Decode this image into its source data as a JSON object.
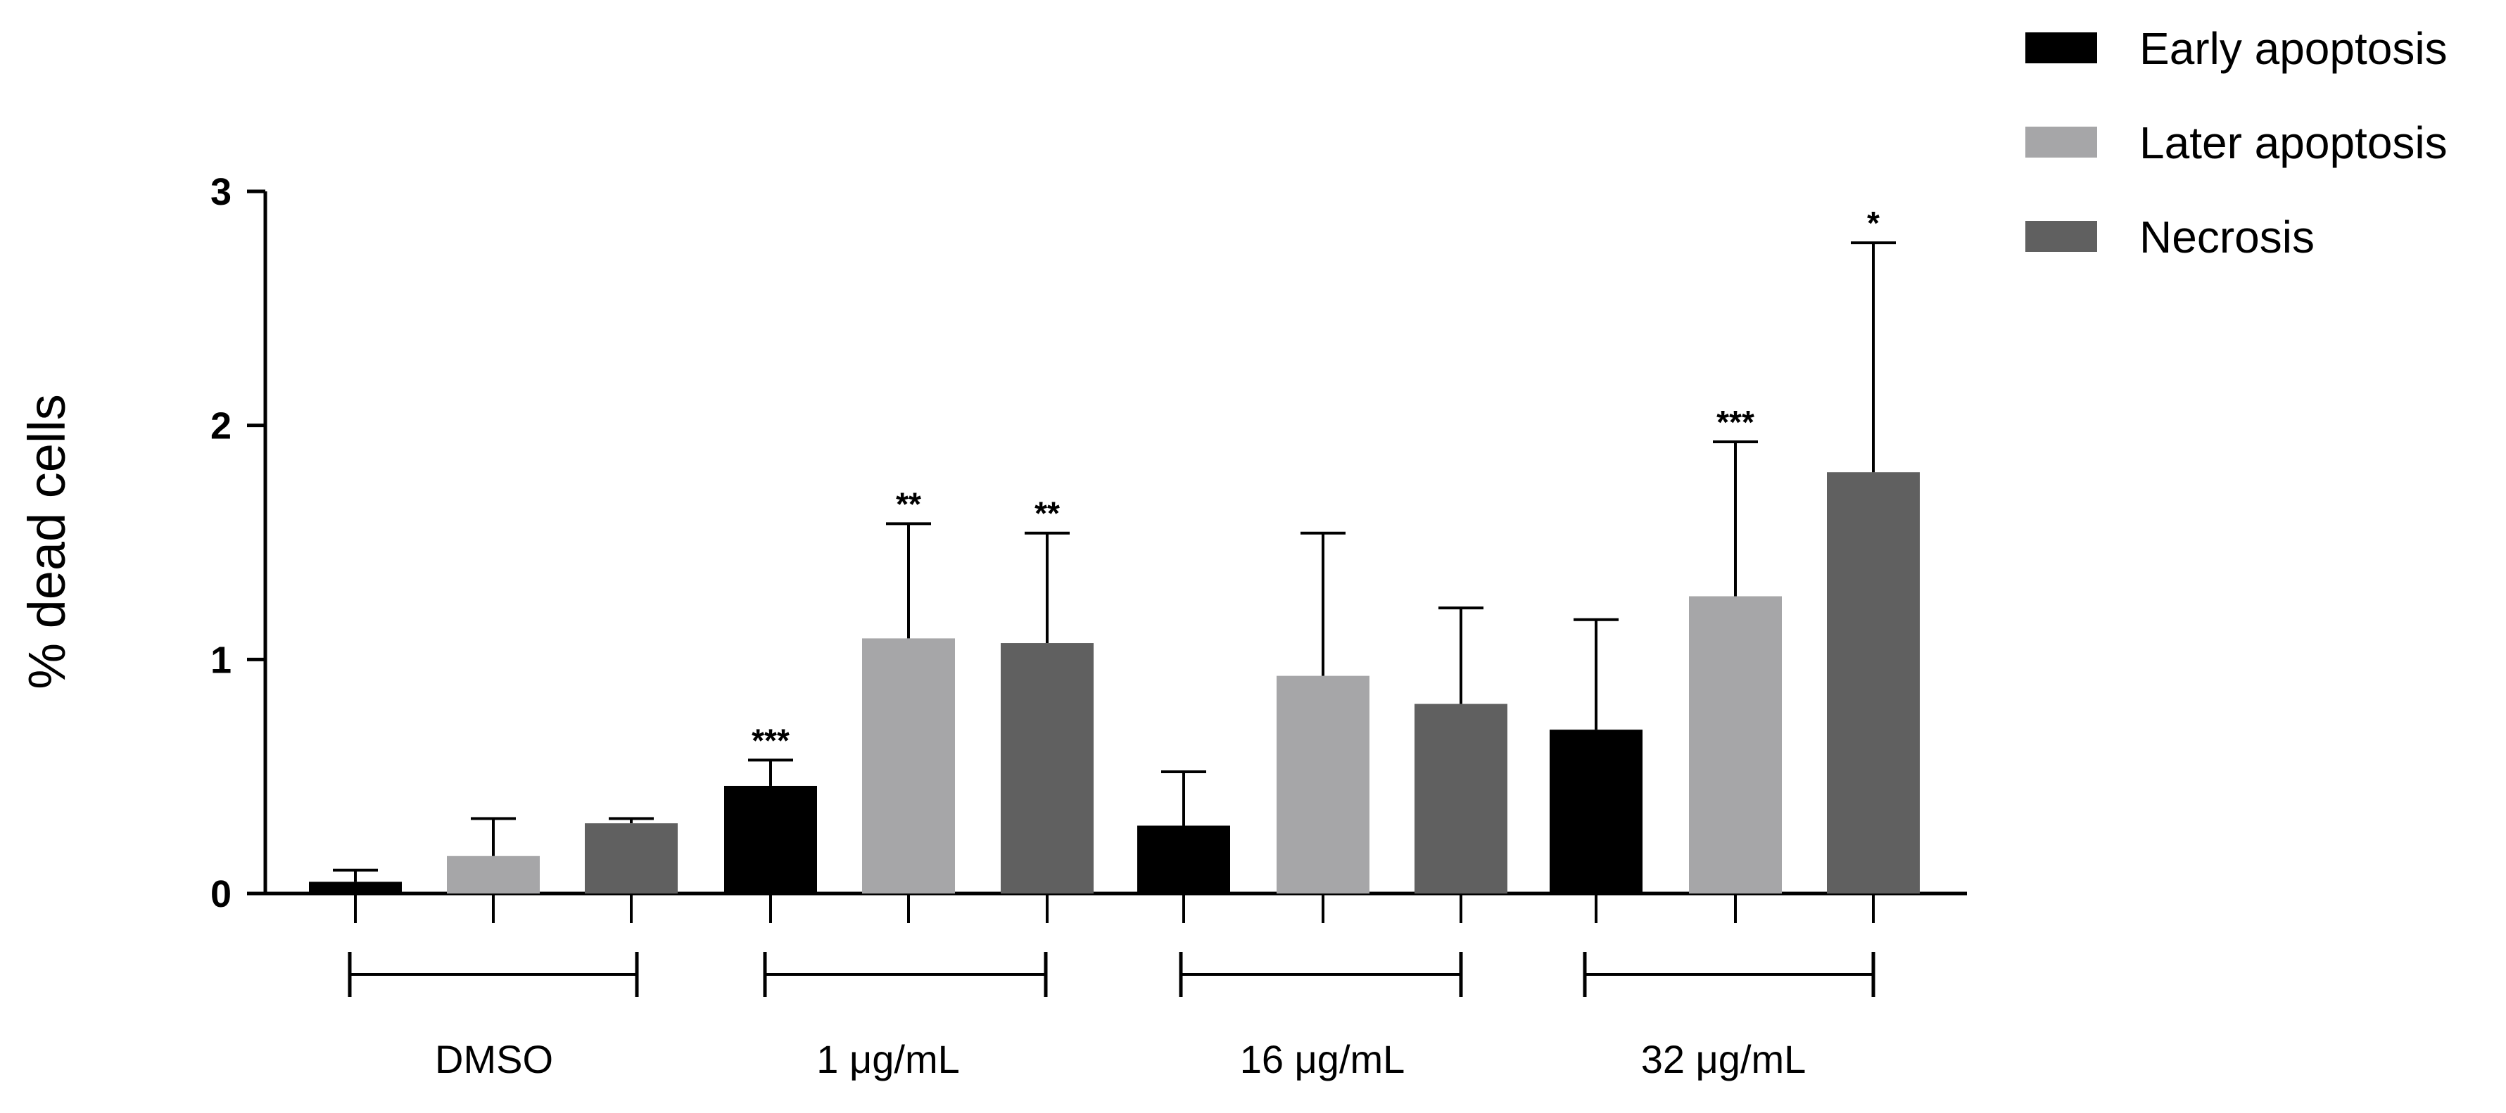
{
  "chart_data": {
    "type": "bar",
    "title": "",
    "xlabel": "",
    "ylabel": "% dead cells",
    "ylim": [
      0,
      3
    ],
    "yticks": [
      0,
      1,
      2,
      3
    ],
    "grid": false,
    "legend_position": "top-right",
    "categories": [
      "DMSO",
      "1 μg/mL",
      "16 μg/mL",
      "32 μg/mL"
    ],
    "series": [
      {
        "name": "Early apoptosis",
        "color": "#000000",
        "values": [
          0.05,
          0.46,
          0.29,
          0.7
        ],
        "error": [
          0.05,
          0.11,
          0.23,
          0.47
        ],
        "significance": [
          "",
          "***",
          "",
          ""
        ]
      },
      {
        "name": "Later apoptosis",
        "color": "#a6a6a8",
        "values": [
          0.16,
          1.09,
          0.93,
          1.27
        ],
        "error": [
          0.16,
          0.49,
          0.61,
          0.66
        ],
        "significance": [
          "",
          "**",
          "",
          "***"
        ]
      },
      {
        "name": "Necrosis",
        "color": "#606060",
        "values": [
          0.3,
          1.07,
          0.81,
          1.8
        ],
        "error": [
          0.02,
          0.47,
          0.41,
          0.98
        ],
        "significance": [
          "",
          "**",
          "",
          "*"
        ]
      }
    ]
  }
}
